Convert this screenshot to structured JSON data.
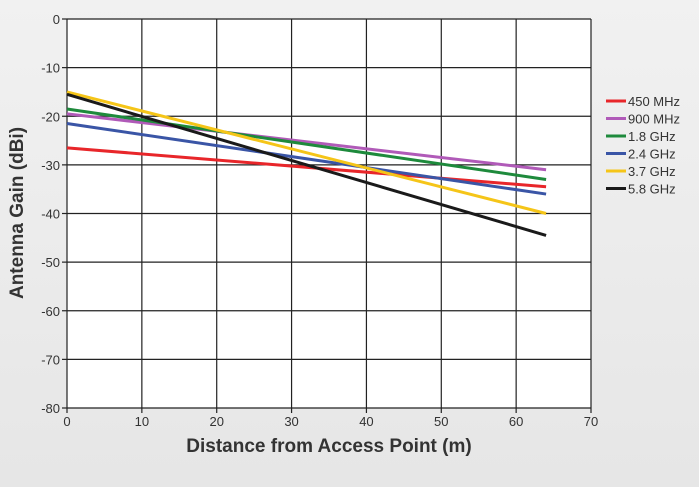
{
  "chart_data": {
    "type": "line",
    "xlabel": "Distance from Access Point (m)",
    "ylabel": "Antenna Gain (dBi)",
    "xlim": [
      0,
      70
    ],
    "ylim": [
      -80,
      0
    ],
    "xticks": [
      0,
      10,
      20,
      30,
      40,
      50,
      60,
      70
    ],
    "yticks": [
      0,
      -10,
      -20,
      -30,
      -40,
      -50,
      -60,
      -70,
      -80
    ],
    "xtick_labels": [
      "0",
      "10",
      "20",
      "30",
      "40",
      "50",
      "60",
      "70"
    ],
    "ytick_labels": [
      "0",
      "-10",
      "-20",
      "-30",
      "-40",
      "-50",
      "-60",
      "-70",
      "-80"
    ],
    "grid": true,
    "legend_position": "right",
    "series": [
      {
        "name": "450 MHz",
        "color": "#e8262a",
        "points": [
          [
            0,
            -26.5
          ],
          [
            64,
            -34.5
          ]
        ]
      },
      {
        "name": "900 MHz",
        "color": "#b05ab8",
        "points": [
          [
            0,
            -19.5
          ],
          [
            64,
            -31
          ]
        ]
      },
      {
        "name": "1.8 GHz",
        "color": "#1e8a3c",
        "points": [
          [
            0,
            -18.5
          ],
          [
            64,
            -33
          ]
        ]
      },
      {
        "name": "2.4 GHz",
        "color": "#3a55a6",
        "points": [
          [
            0,
            -21.5
          ],
          [
            64,
            -36
          ]
        ]
      },
      {
        "name": "3.7 GHz",
        "color": "#f5c518",
        "points": [
          [
            0,
            -15
          ],
          [
            64,
            -40
          ]
        ]
      },
      {
        "name": "5.8 GHz",
        "color": "#1a1a1a",
        "points": [
          [
            0,
            -15.5
          ],
          [
            64,
            -44.5
          ]
        ]
      }
    ]
  }
}
